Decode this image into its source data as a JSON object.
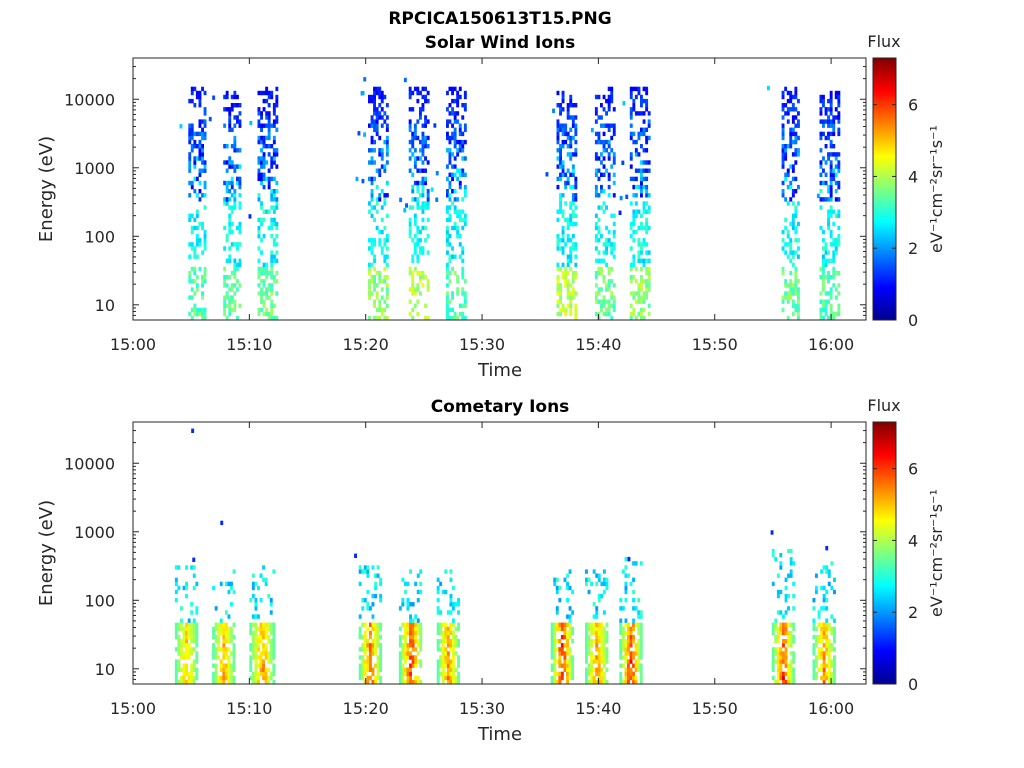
{
  "figure_title": "RPCICA150613T15.PNG",
  "colormap": [
    "#00008f",
    "#0000ff",
    "#0080ff",
    "#00ffff",
    "#80ff80",
    "#ffff00",
    "#ff8000",
    "#ff0000",
    "#800000"
  ],
  "chart_data": [
    {
      "type": "heatmap",
      "title": "Solar Wind Ions",
      "xlabel": "Time",
      "ylabel": "Energy (eV)",
      "x_ticks": [
        "15:00",
        "15:10",
        "15:20",
        "15:30",
        "15:40",
        "15:50",
        "16:00"
      ],
      "x_range_min": [
        0,
        63
      ],
      "y_ticks": [
        "10",
        "100",
        "1000",
        "10000"
      ],
      "y_scale": "log",
      "y_range_eV": [
        6,
        40000
      ],
      "colorbar": {
        "label": "Flux",
        "unit": "eV⁻¹cm⁻²sr⁻¹s⁻¹",
        "ticks": [
          "0",
          "2",
          "4",
          "6"
        ],
        "range": [
          0,
          7.3
        ]
      },
      "grid": false,
      "bursts": [
        {
          "center_min": 5.5,
          "width_min": 1.5,
          "emax": 15000,
          "low_flux": 3.8
        },
        {
          "center_min": 8.5,
          "width_min": 1.5,
          "emax": 12000,
          "low_flux": 3.8
        },
        {
          "center_min": 11.5,
          "width_min": 1.6,
          "emax": 15000,
          "low_flux": 4.0
        },
        {
          "center_min": 21.0,
          "width_min": 1.6,
          "emax": 15000,
          "low_flux": 4.2
        },
        {
          "center_min": 24.5,
          "width_min": 1.6,
          "emax": 15000,
          "low_flux": 4.5
        },
        {
          "center_min": 27.7,
          "width_min": 1.6,
          "emax": 15000,
          "low_flux": 3.8
        },
        {
          "center_min": 37.2,
          "width_min": 1.6,
          "emax": 12000,
          "low_flux": 4.5
        },
        {
          "center_min": 40.5,
          "width_min": 1.6,
          "emax": 15000,
          "low_flux": 4.0
        },
        {
          "center_min": 43.5,
          "width_min": 1.6,
          "emax": 15000,
          "low_flux": 4.2
        },
        {
          "center_min": 56.5,
          "width_min": 1.5,
          "emax": 15000,
          "low_flux": 4.0
        },
        {
          "center_min": 59.8,
          "width_min": 1.6,
          "emax": 12000,
          "low_flux": 3.8
        }
      ],
      "flux_range_mid": [
        0.8,
        3.2
      ]
    },
    {
      "type": "heatmap",
      "title": "Cometary Ions",
      "xlabel": "Time",
      "ylabel": "Energy (eV)",
      "x_ticks": [
        "15:00",
        "15:10",
        "15:20",
        "15:30",
        "15:40",
        "15:50",
        "16:00"
      ],
      "x_range_min": [
        0,
        63
      ],
      "y_ticks": [
        "10",
        "100",
        "1000",
        "10000"
      ],
      "y_scale": "log",
      "y_range_eV": [
        6,
        40000
      ],
      "colorbar": {
        "label": "Flux",
        "unit": "eV⁻¹cm⁻²sr⁻¹s⁻¹",
        "ticks": [
          "0",
          "2",
          "4",
          "6"
        ],
        "range": [
          0,
          7.3
        ]
      },
      "grid": false,
      "bursts": [
        {
          "center_min": 4.5,
          "width_min": 1.8,
          "emax": 300,
          "peak_flux": 5.5
        },
        {
          "center_min": 7.7,
          "width_min": 1.8,
          "emax": 300,
          "peak_flux": 5.8
        },
        {
          "center_min": 11.0,
          "width_min": 2.0,
          "emax": 300,
          "peak_flux": 6.0
        },
        {
          "center_min": 20.3,
          "width_min": 1.8,
          "emax": 300,
          "peak_flux": 6.5
        },
        {
          "center_min": 23.8,
          "width_min": 1.9,
          "emax": 300,
          "peak_flux": 6.8
        },
        {
          "center_min": 27.0,
          "width_min": 1.8,
          "emax": 250,
          "peak_flux": 6.0
        },
        {
          "center_min": 36.8,
          "width_min": 1.8,
          "emax": 250,
          "peak_flux": 7.2
        },
        {
          "center_min": 39.8,
          "width_min": 1.9,
          "emax": 250,
          "peak_flux": 6.0
        },
        {
          "center_min": 42.7,
          "width_min": 1.8,
          "emax": 400,
          "peak_flux": 7.0
        },
        {
          "center_min": 55.8,
          "width_min": 1.8,
          "emax": 500,
          "peak_flux": 6.8
        },
        {
          "center_min": 59.3,
          "width_min": 1.8,
          "emax": 400,
          "peak_flux": 6.0
        }
      ],
      "isolated_points": [
        {
          "t_min": 5.0,
          "energy_eV": 32000
        },
        {
          "t_min": 7.5,
          "energy_eV": 1450
        },
        {
          "t_min": 5.1,
          "energy_eV": 420
        },
        {
          "t_min": 19.0,
          "energy_eV": 480
        },
        {
          "t_min": 42.5,
          "energy_eV": 430
        },
        {
          "t_min": 54.8,
          "energy_eV": 1050
        },
        {
          "t_min": 59.5,
          "energy_eV": 620
        }
      ]
    }
  ]
}
